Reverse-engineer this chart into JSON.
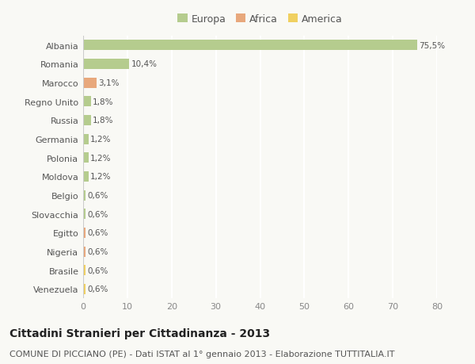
{
  "categories": [
    "Albania",
    "Romania",
    "Marocco",
    "Regno Unito",
    "Russia",
    "Germania",
    "Polonia",
    "Moldova",
    "Belgio",
    "Slovacchia",
    "Egitto",
    "Nigeria",
    "Brasile",
    "Venezuela"
  ],
  "values": [
    75.5,
    10.4,
    3.1,
    1.8,
    1.8,
    1.2,
    1.2,
    1.2,
    0.6,
    0.6,
    0.6,
    0.6,
    0.6,
    0.6
  ],
  "labels": [
    "75,5%",
    "10,4%",
    "3,1%",
    "1,8%",
    "1,8%",
    "1,2%",
    "1,2%",
    "1,2%",
    "0,6%",
    "0,6%",
    "0,6%",
    "0,6%",
    "0,6%",
    "0,6%"
  ],
  "continents": [
    "Europa",
    "Europa",
    "Africa",
    "Europa",
    "Europa",
    "Europa",
    "Europa",
    "Europa",
    "Europa",
    "Europa",
    "Africa",
    "Africa",
    "America",
    "America"
  ],
  "colors": {
    "Europa": "#b5cc8e",
    "Africa": "#e8a87c",
    "America": "#f0d060"
  },
  "xlim": [
    0,
    80
  ],
  "xticks": [
    0,
    10,
    20,
    30,
    40,
    50,
    60,
    70,
    80
  ],
  "title": "Cittadini Stranieri per Cittadinanza - 2013",
  "subtitle": "COMUNE DI PICCIANO (PE) - Dati ISTAT al 1° gennaio 2013 - Elaborazione TUTTITALIA.IT",
  "background_color": "#f9f9f5",
  "grid_color": "#ffffff",
  "bar_height": 0.55,
  "title_fontsize": 10,
  "subtitle_fontsize": 8,
  "label_fontsize": 7.5,
  "tick_fontsize": 8,
  "legend_fontsize": 9
}
